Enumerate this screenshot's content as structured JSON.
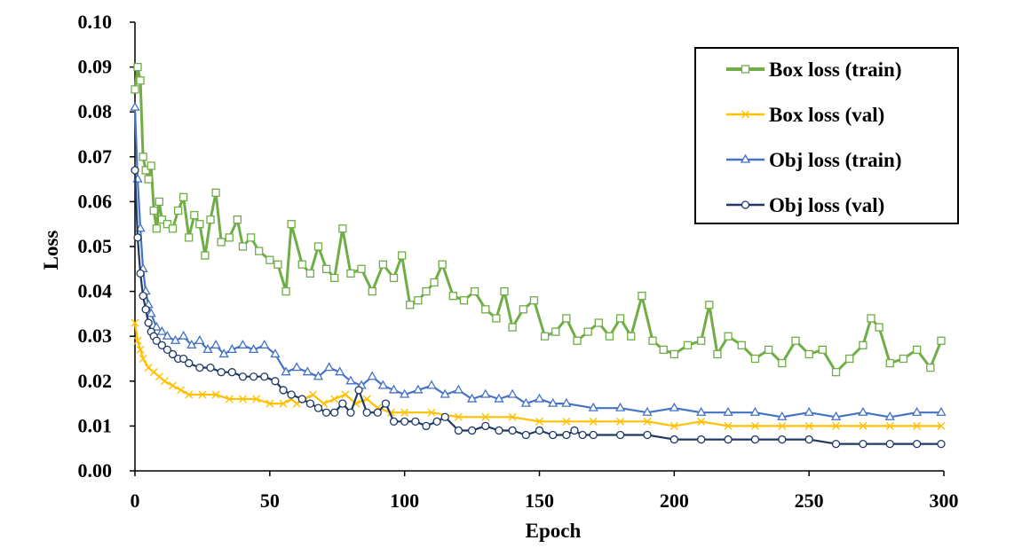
{
  "chart_data": {
    "type": "line",
    "xlabel": "Epoch",
    "ylabel": "Loss",
    "xlim": [
      0,
      300
    ],
    "ylim": [
      0,
      0.1
    ],
    "x_ticks": [
      "0",
      "50",
      "100",
      "150",
      "200",
      "250",
      "300"
    ],
    "y_ticks": [
      "0.00",
      "0.01",
      "0.02",
      "0.03",
      "0.04",
      "0.05",
      "0.06",
      "0.07",
      "0.08",
      "0.09",
      "0.10"
    ],
    "grid": false,
    "legend_position": "top-right",
    "series": [
      {
        "name": "Box loss (train)",
        "color": "#70AD47",
        "marker": "square-open",
        "x": [
          0,
          1,
          2,
          3,
          4,
          5,
          6,
          7,
          8,
          9,
          10,
          12,
          14,
          16,
          18,
          20,
          22,
          24,
          26,
          28,
          30,
          32,
          35,
          38,
          40,
          43,
          46,
          50,
          53,
          56,
          58,
          62,
          65,
          68,
          71,
          74,
          77,
          80,
          84,
          88,
          92,
          96,
          99,
          102,
          105,
          108,
          111,
          114,
          118,
          122,
          126,
          130,
          134,
          137,
          140,
          144,
          148,
          152,
          156,
          160,
          164,
          168,
          172,
          176,
          180,
          184,
          188,
          192,
          196,
          200,
          205,
          210,
          213,
          216,
          220,
          225,
          230,
          235,
          240,
          245,
          250,
          255,
          260,
          265,
          270,
          273,
          276,
          280,
          285,
          290,
          295,
          299
        ],
        "y": [
          0.085,
          0.09,
          0.087,
          0.07,
          0.067,
          0.065,
          0.068,
          0.058,
          0.054,
          0.06,
          0.056,
          0.055,
          0.054,
          0.058,
          0.061,
          0.052,
          0.057,
          0.055,
          0.048,
          0.056,
          0.062,
          0.051,
          0.052,
          0.056,
          0.05,
          0.052,
          0.049,
          0.047,
          0.046,
          0.04,
          0.055,
          0.046,
          0.044,
          0.05,
          0.045,
          0.043,
          0.054,
          0.044,
          0.045,
          0.04,
          0.046,
          0.043,
          0.048,
          0.037,
          0.038,
          0.04,
          0.042,
          0.046,
          0.039,
          0.038,
          0.04,
          0.036,
          0.034,
          0.04,
          0.032,
          0.036,
          0.038,
          0.03,
          0.031,
          0.034,
          0.029,
          0.031,
          0.033,
          0.03,
          0.034,
          0.03,
          0.039,
          0.029,
          0.027,
          0.026,
          0.028,
          0.029,
          0.037,
          0.026,
          0.03,
          0.028,
          0.025,
          0.027,
          0.024,
          0.029,
          0.026,
          0.027,
          0.022,
          0.025,
          0.028,
          0.034,
          0.032,
          0.024,
          0.025,
          0.027,
          0.023,
          0.029
        ]
      },
      {
        "name": "Box loss (val)",
        "color": "#FFC000",
        "marker": "x",
        "x": [
          0,
          1,
          2,
          3,
          5,
          7,
          9,
          11,
          14,
          17,
          20,
          25,
          30,
          35,
          40,
          45,
          50,
          55,
          58,
          60,
          63,
          66,
          70,
          74,
          78,
          82,
          86,
          90,
          95,
          100,
          110,
          120,
          130,
          140,
          150,
          160,
          170,
          180,
          190,
          200,
          210,
          220,
          230,
          240,
          250,
          260,
          270,
          280,
          290,
          299
        ],
        "y": [
          0.033,
          0.029,
          0.027,
          0.025,
          0.023,
          0.022,
          0.021,
          0.02,
          0.019,
          0.018,
          0.017,
          0.017,
          0.017,
          0.016,
          0.016,
          0.016,
          0.015,
          0.015,
          0.016,
          0.015,
          0.016,
          0.017,
          0.015,
          0.016,
          0.017,
          0.015,
          0.016,
          0.014,
          0.013,
          0.013,
          0.013,
          0.012,
          0.012,
          0.012,
          0.011,
          0.011,
          0.011,
          0.011,
          0.011,
          0.01,
          0.011,
          0.01,
          0.01,
          0.01,
          0.01,
          0.01,
          0.01,
          0.01,
          0.01,
          0.01
        ]
      },
      {
        "name": "Obj loss (train)",
        "color": "#4472C4",
        "marker": "triangle-open",
        "x": [
          0,
          1,
          2,
          3,
          4,
          5,
          6,
          8,
          10,
          12,
          15,
          18,
          21,
          24,
          27,
          30,
          33,
          36,
          40,
          44,
          48,
          52,
          56,
          60,
          64,
          68,
          72,
          76,
          80,
          84,
          88,
          92,
          96,
          100,
          105,
          110,
          115,
          120,
          125,
          130,
          135,
          140,
          145,
          150,
          155,
          160,
          170,
          180,
          190,
          200,
          210,
          220,
          230,
          240,
          250,
          260,
          270,
          280,
          290,
          299
        ],
        "y": [
          0.081,
          0.065,
          0.054,
          0.045,
          0.04,
          0.037,
          0.035,
          0.032,
          0.031,
          0.03,
          0.029,
          0.03,
          0.028,
          0.029,
          0.027,
          0.028,
          0.026,
          0.027,
          0.028,
          0.027,
          0.028,
          0.026,
          0.022,
          0.023,
          0.022,
          0.021,
          0.023,
          0.022,
          0.02,
          0.019,
          0.021,
          0.019,
          0.018,
          0.017,
          0.018,
          0.019,
          0.017,
          0.018,
          0.016,
          0.017,
          0.016,
          0.017,
          0.015,
          0.016,
          0.015,
          0.015,
          0.014,
          0.014,
          0.013,
          0.014,
          0.013,
          0.013,
          0.013,
          0.012,
          0.013,
          0.012,
          0.013,
          0.012,
          0.013,
          0.013
        ]
      },
      {
        "name": "Obj loss (val)",
        "color": "#1F3864",
        "marker": "circle-open",
        "x": [
          0,
          1,
          2,
          3,
          4,
          5,
          6,
          7,
          8,
          10,
          12,
          14,
          16,
          18,
          20,
          24,
          28,
          32,
          36,
          40,
          44,
          48,
          52,
          55,
          58,
          62,
          65,
          68,
          71,
          74,
          77,
          80,
          83,
          86,
          90,
          93,
          96,
          100,
          104,
          108,
          112,
          115,
          120,
          125,
          130,
          135,
          140,
          145,
          150,
          155,
          160,
          163,
          166,
          170,
          180,
          190,
          200,
          210,
          220,
          230,
          240,
          250,
          260,
          270,
          280,
          290,
          299
        ],
        "y": [
          0.067,
          0.052,
          0.044,
          0.039,
          0.036,
          0.033,
          0.031,
          0.03,
          0.029,
          0.028,
          0.027,
          0.026,
          0.025,
          0.025,
          0.024,
          0.023,
          0.023,
          0.022,
          0.022,
          0.021,
          0.021,
          0.021,
          0.02,
          0.018,
          0.017,
          0.016,
          0.015,
          0.014,
          0.013,
          0.013,
          0.015,
          0.013,
          0.018,
          0.013,
          0.013,
          0.015,
          0.011,
          0.011,
          0.011,
          0.01,
          0.011,
          0.012,
          0.009,
          0.009,
          0.01,
          0.009,
          0.009,
          0.008,
          0.009,
          0.008,
          0.008,
          0.009,
          0.008,
          0.008,
          0.008,
          0.008,
          0.007,
          0.007,
          0.007,
          0.007,
          0.007,
          0.007,
          0.006,
          0.006,
          0.006,
          0.006,
          0.006
        ]
      }
    ]
  }
}
